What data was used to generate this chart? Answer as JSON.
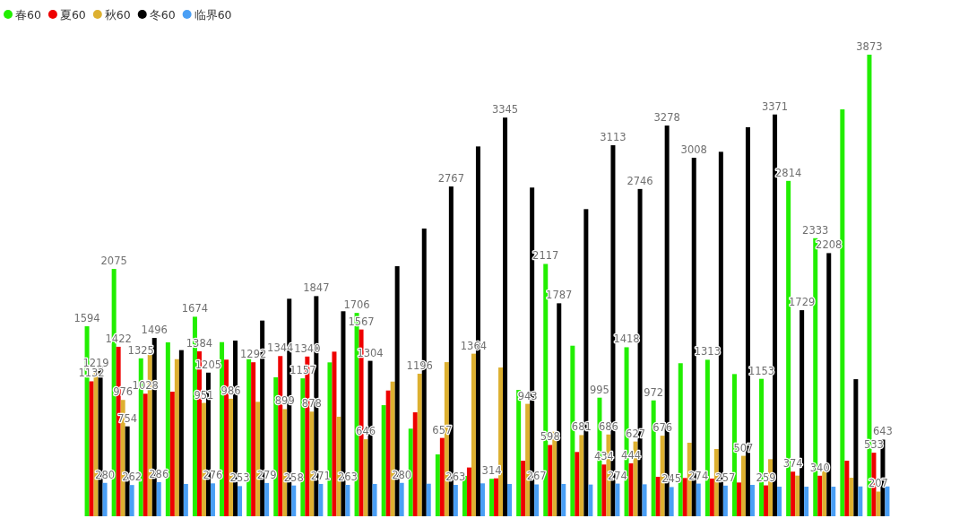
{
  "chart_data": {
    "type": "bar",
    "legend": "top left",
    "categories": [
      null,
      null,
      null,
      null,
      null,
      null,
      null,
      null,
      null,
      null,
      null,
      null,
      null,
      null,
      null,
      null,
      null,
      null,
      null,
      null,
      null,
      null,
      null,
      null,
      null,
      null,
      null,
      null,
      null,
      null
    ],
    "series": [
      {
        "name": "春60",
        "color": "#22ee00",
        "values": [
          1594,
          2075,
          1325,
          1459,
          1674,
          1461,
          1318,
          1166,
          1157,
          1291,
          1706,
          932,
          735,
          519,
          338,
          314,
          1060,
          2117,
          1431,
          995,
          1418,
          972,
          1284,
          1313,
          1193,
          1153,
          2814,
          2333,
          3414,
          3873
        ],
        "value_labels": [
          "1594",
          "2075",
          "1325",
          null,
          "1674",
          null,
          null,
          null,
          "1157",
          null,
          "1706",
          null,
          null,
          null,
          null,
          "314",
          null,
          "2117",
          null,
          "995",
          "1418",
          "972",
          null,
          "1313",
          null,
          "1153",
          "2814",
          "2333",
          null,
          "3873"
        ]
      },
      {
        "name": "夏60",
        "color": "#ee0000",
        "values": [
          1132,
          1422,
          1028,
          1045,
          1384,
          1314,
          1292,
          1344,
          1340,
          1381,
          1567,
          1055,
          872,
          657,
          409,
          318,
          466,
          598,
          539,
          434,
          444,
          331,
          321,
          316,
          283,
          259,
          374,
          340,
          466,
          533
        ],
        "value_labels": [
          "1132",
          "1422",
          "1028",
          null,
          "1384",
          null,
          "1292",
          "1344",
          "1340",
          null,
          "1567",
          null,
          null,
          "657",
          null,
          null,
          null,
          "598",
          null,
          "434",
          "444",
          null,
          null,
          null,
          null,
          "259",
          "374",
          "340",
          null,
          "533"
        ]
      },
      {
        "name": "秋60",
        "color": "#ddb030",
        "values": [
          1219,
          976,
          1354,
          1318,
          951,
          986,
          960,
          899,
          878,
          835,
          646,
          1130,
          1196,
          1293,
          1364,
          1248,
          943,
          709,
          681,
          686,
          627,
          676,
          617,
          564,
          507,
          479,
          341,
          380,
          323,
          207
        ],
        "value_labels": [
          "1219",
          "976",
          null,
          null,
          "951",
          "986",
          null,
          "899",
          "878",
          null,
          "646",
          null,
          "1196",
          null,
          "1364",
          null,
          "943",
          null,
          "681",
          "686",
          "627",
          "676",
          null,
          null,
          "507",
          null,
          null,
          null,
          null,
          "207"
        ]
      },
      {
        "name": "冬60",
        "color": "#000000",
        "values": [
          1266,
          754,
          1496,
          1394,
          1205,
          1474,
          1642,
          1825,
          1847,
          1720,
          1304,
          2098,
          2414,
          2767,
          3103,
          3345,
          2758,
          1787,
          2577,
          3113,
          2746,
          3278,
          3008,
          3058,
          3264,
          3371,
          1729,
          2208,
          1150,
          643
        ],
        "value_labels": [
          null,
          "754",
          "1496",
          null,
          "1205",
          null,
          null,
          null,
          "1847",
          null,
          "1304",
          null,
          null,
          "2767",
          null,
          "3345",
          null,
          "1787",
          null,
          "3113",
          "2746",
          "3278",
          "3008",
          null,
          null,
          "3371",
          "1729",
          "2208",
          null,
          "643"
        ]
      },
      {
        "name": "临界60",
        "color": "#4a9ff5",
        "values": [
          280,
          262,
          286,
          271,
          276,
          253,
          279,
          258,
          271,
          263,
          271,
          280,
          273,
          263,
          276,
          271,
          267,
          271,
          266,
          274,
          268,
          245,
          274,
          257,
          263,
          248,
          248,
          248,
          250,
          250
        ],
        "value_labels": [
          "280",
          "262",
          "286",
          null,
          "276",
          "253",
          "279",
          "258",
          "271",
          "263",
          null,
          "280",
          null,
          "263",
          null,
          null,
          "267",
          null,
          null,
          "274",
          null,
          "245",
          "274",
          "257",
          null,
          null,
          null,
          null,
          null,
          null
        ]
      }
    ]
  }
}
